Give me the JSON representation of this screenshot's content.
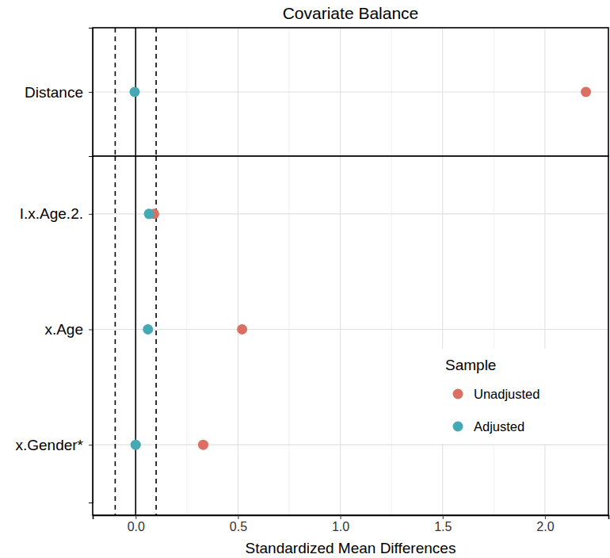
{
  "chart_data": {
    "type": "dot",
    "title": "Covariate Balance",
    "x_label": "Standardized Mean Differences",
    "categories": [
      "Distance",
      "I.x.Age.2.",
      "x.Age",
      "x.Gender*"
    ],
    "series": [
      {
        "name": "Unadjusted",
        "color": "#db6f61",
        "values": [
          2.2,
          0.09,
          0.52,
          0.33
        ]
      },
      {
        "name": "Adjusted",
        "color": "#45a9b5",
        "values": [
          -0.005,
          0.065,
          0.06,
          0
        ]
      }
    ],
    "xlim": [
      -0.21,
      2.31
    ],
    "xticks": [
      {
        "value": 0,
        "label": "0.0"
      },
      0.5,
      {
        "value": 1,
        "label": "1.0"
      },
      1.5,
      {
        "value": 2,
        "label": "2.0"
      }
    ],
    "threshold_lines": [
      -0.1,
      0.1
    ],
    "zero_line": 0,
    "legend_title": "Sample",
    "legend": "right",
    "grid": true,
    "orientation": "horizontal",
    "marker": "circle"
  }
}
